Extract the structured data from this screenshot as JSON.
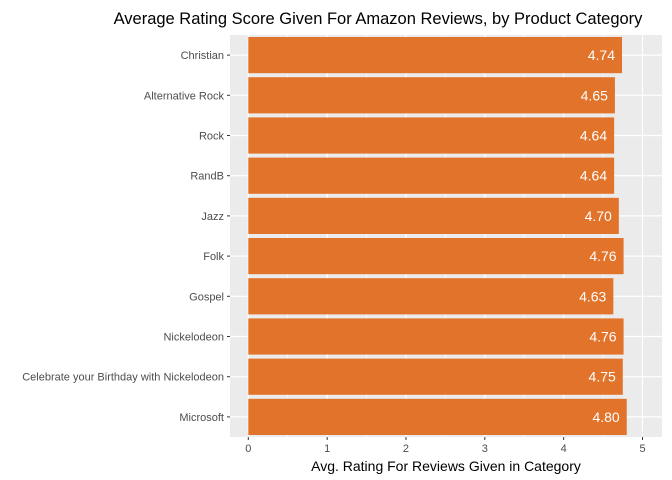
{
  "chart_data": {
    "type": "bar",
    "orientation": "horizontal",
    "title": "Average Rating Score Given For Amazon Reviews, by Product Category",
    "xlabel": "Avg. Rating For Reviews Given in Category",
    "ylabel": "",
    "xlim": [
      0,
      5
    ],
    "x_ticks": [
      0,
      1,
      2,
      3,
      4,
      5
    ],
    "grid": true,
    "legend": "none",
    "categories": [
      "Christian",
      "Alternative Rock",
      "Rock",
      "RandB",
      "Jazz",
      "Folk",
      "Gospel",
      "Nickelodeon",
      "Celebrate your Birthday with Nickelodeon",
      "Microsoft"
    ],
    "values": [
      4.74,
      4.65,
      4.64,
      4.64,
      4.7,
      4.76,
      4.63,
      4.76,
      4.75,
      4.8
    ],
    "value_labels": [
      "4.74",
      "4.65",
      "4.64",
      "4.64",
      "4.70",
      "4.76",
      "4.63",
      "4.76",
      "4.75",
      "4.80"
    ],
    "colors": {
      "bar": "#E1732A",
      "panel": "#EBEBEB",
      "grid": "#FFFFFF",
      "label": "#FFFFFF"
    }
  }
}
